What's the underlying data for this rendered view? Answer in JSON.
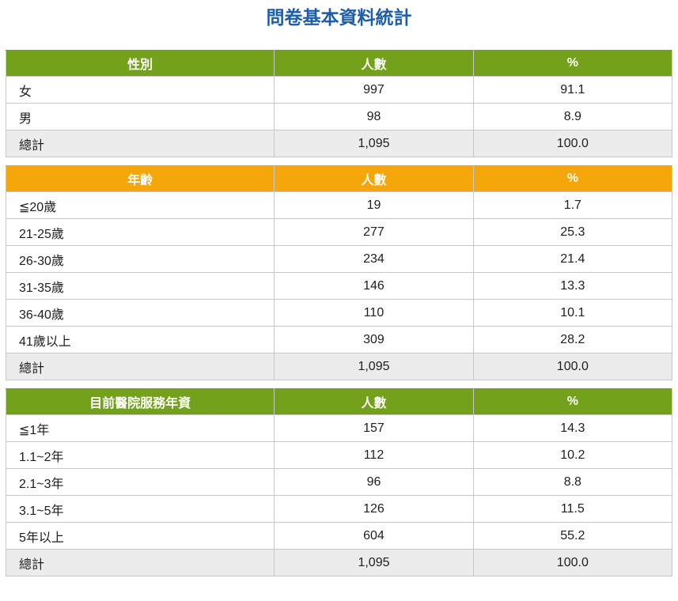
{
  "page": {
    "title": "問卷基本資料統計"
  },
  "colors": {
    "green_header": "#74A11C",
    "orange_header": "#F5A60A",
    "title_blue": "#1C5EA9",
    "total_row_bg": "#ECECEC",
    "border": "#C8C8C8",
    "text": "#1E1E1E"
  },
  "tables": [
    {
      "name": "gender",
      "theme": "green",
      "columns": [
        "性別",
        "人數",
        "%"
      ],
      "rows": [
        [
          "女",
          "997",
          "91.1"
        ],
        [
          "男",
          "98",
          "8.9"
        ]
      ],
      "total_row": [
        "總計",
        "1,095",
        "100.0"
      ]
    },
    {
      "name": "age",
      "theme": "orange",
      "columns": [
        "年齡",
        "人數",
        "%"
      ],
      "rows": [
        [
          "≦20歲",
          "19",
          "1.7"
        ],
        [
          "21-25歲",
          "277",
          "25.3"
        ],
        [
          "26-30歲",
          "234",
          "21.4"
        ],
        [
          "31-35歲",
          "146",
          "13.3"
        ],
        [
          "36-40歲",
          "110",
          "10.1"
        ],
        [
          "41歲以上",
          "309",
          "28.2"
        ]
      ],
      "total_row": [
        "總計",
        "1,095",
        "100.0"
      ]
    },
    {
      "name": "hospital-service-years",
      "theme": "green",
      "columns": [
        "目前醫院服務年資",
        "人數",
        "%"
      ],
      "rows": [
        [
          "≦1年",
          "157",
          "14.3"
        ],
        [
          "1.1~2年",
          "112",
          "10.2"
        ],
        [
          "2.1~3年",
          "96",
          "8.8"
        ],
        [
          "3.1~5年",
          "126",
          "11.5"
        ],
        [
          "5年以上",
          "604",
          "55.2"
        ]
      ],
      "total_row": [
        "總計",
        "1,095",
        "100.0"
      ]
    }
  ]
}
